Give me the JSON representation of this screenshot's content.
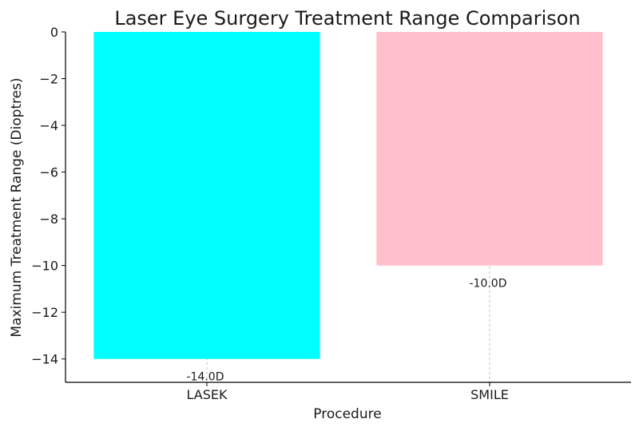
{
  "chart_data": {
    "type": "bar",
    "title": "Laser Eye Surgery Treatment Range Comparison",
    "xlabel": "Procedure",
    "ylabel": "Maximum Treatment Range (Dioptres)",
    "categories": [
      "LASEK",
      "SMILE"
    ],
    "values": [
      -14.0,
      -10.0
    ],
    "data_labels": [
      "-14.0D",
      "-10.0D"
    ],
    "bar_colors": [
      "#00ffff",
      "#ffc0cb"
    ],
    "ylim": [
      -15,
      0
    ],
    "yticks": [
      0,
      -2,
      -4,
      -6,
      -8,
      -10,
      -12,
      -14
    ],
    "ytick_labels": [
      "0",
      "−2",
      "−4",
      "−6",
      "−8",
      "−10",
      "−12",
      "−14"
    ],
    "grid": "vertical dashed",
    "legend": "none"
  }
}
